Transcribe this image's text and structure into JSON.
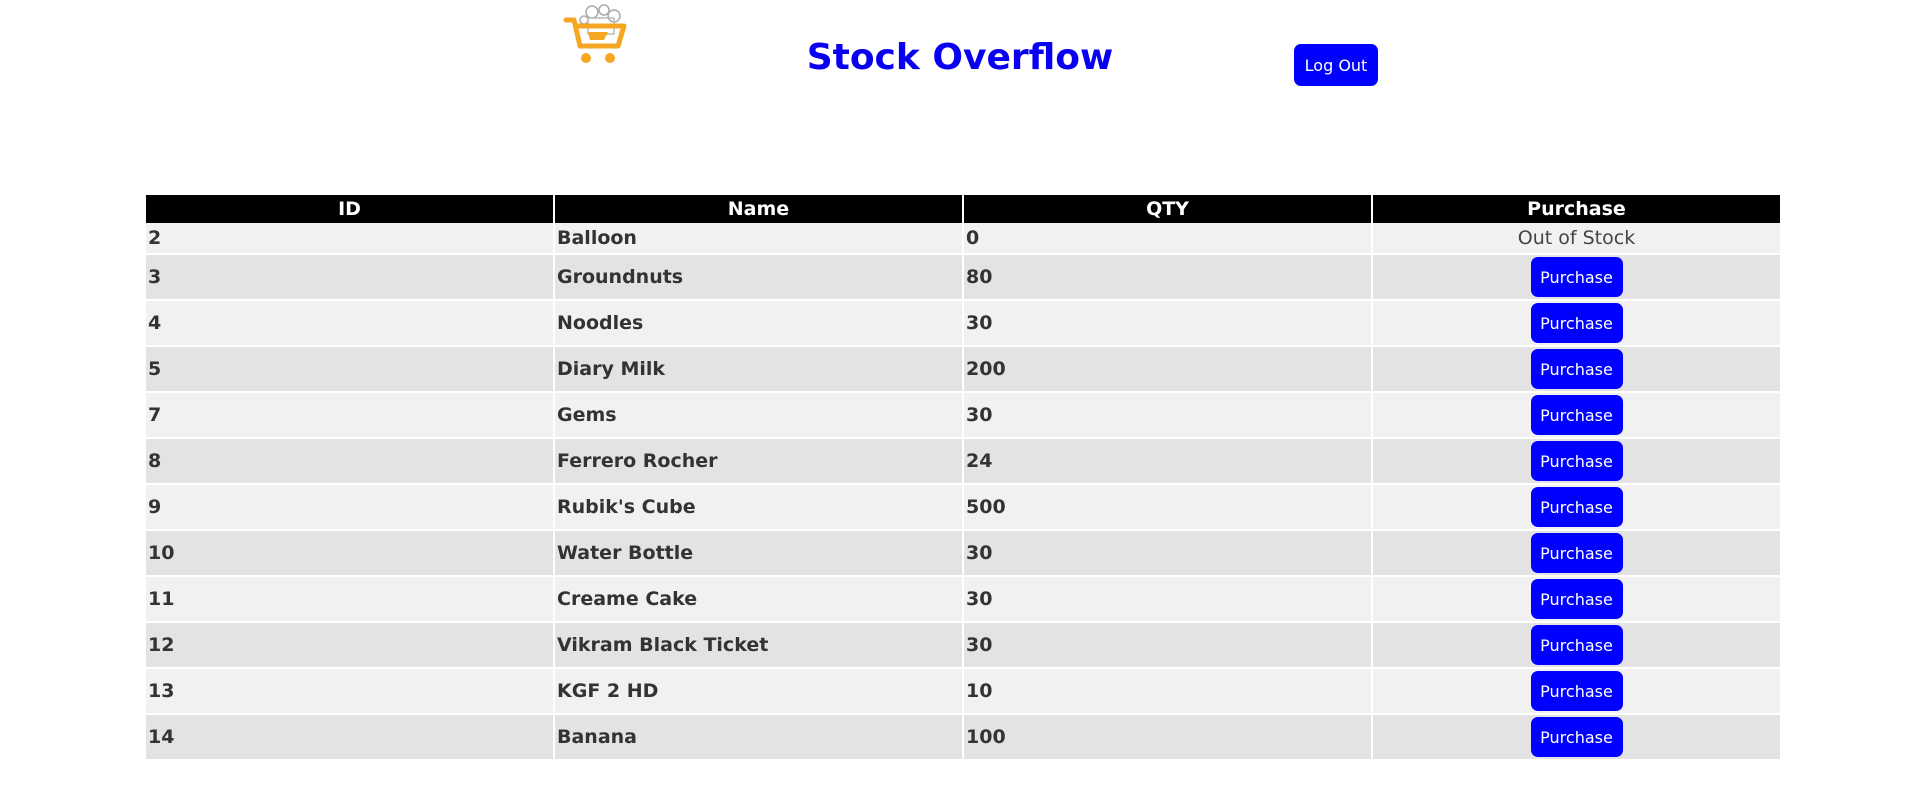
{
  "header": {
    "title": "Stock Overflow",
    "logout_label": "Log Out"
  },
  "colors": {
    "accent": "#0000ff",
    "title": "#0a00f0",
    "header_bg": "#000000",
    "row_light": "#f1f1f1",
    "row_dark": "#e3e3e3",
    "logo_orange": "#f5a623"
  },
  "logo": {
    "icon": "shopping-cart-icon"
  },
  "table": {
    "columns": [
      "ID",
      "Name",
      "QTY",
      "Purchase"
    ],
    "rows": [
      {
        "id": "2",
        "name": "Balloon",
        "qty": "0",
        "action": "Out of Stock",
        "in_stock": false
      },
      {
        "id": "3",
        "name": "Groundnuts",
        "qty": "80",
        "action": "Purchase",
        "in_stock": true
      },
      {
        "id": "4",
        "name": "Noodles",
        "qty": "30",
        "action": "Purchase",
        "in_stock": true
      },
      {
        "id": "5",
        "name": "Diary Milk",
        "qty": "200",
        "action": "Purchase",
        "in_stock": true
      },
      {
        "id": "7",
        "name": "Gems",
        "qty": "30",
        "action": "Purchase",
        "in_stock": true
      },
      {
        "id": "8",
        "name": "Ferrero Rocher",
        "qty": "24",
        "action": "Purchase",
        "in_stock": true
      },
      {
        "id": "9",
        "name": "Rubik's Cube",
        "qty": "500",
        "action": "Purchase",
        "in_stock": true
      },
      {
        "id": "10",
        "name": "Water Bottle",
        "qty": "30",
        "action": "Purchase",
        "in_stock": true
      },
      {
        "id": "11",
        "name": "Creame Cake",
        "qty": "30",
        "action": "Purchase",
        "in_stock": true
      },
      {
        "id": "12",
        "name": "Vikram Black Ticket",
        "qty": "30",
        "action": "Purchase",
        "in_stock": true
      },
      {
        "id": "13",
        "name": "KGF 2 HD",
        "qty": "10",
        "action": "Purchase",
        "in_stock": true
      },
      {
        "id": "14",
        "name": "Banana",
        "qty": "100",
        "action": "Purchase",
        "in_stock": true
      }
    ]
  }
}
